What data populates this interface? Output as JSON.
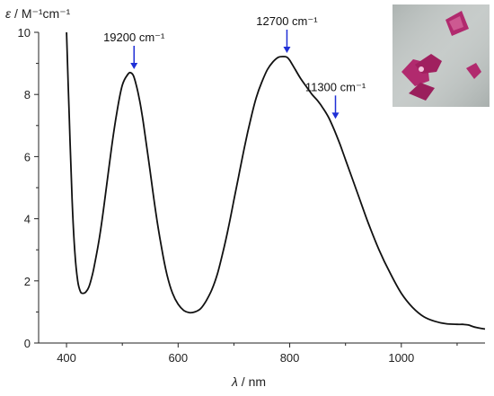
{
  "chart_data": {
    "type": "line",
    "title": "",
    "ylabel_symbol": "ε",
    "ylabel_units": "M⁻¹cm⁻¹",
    "xlabel_symbol": "λ",
    "xlabel_units": "nm",
    "xlim": [
      350,
      1150
    ],
    "ylim": [
      0,
      10
    ],
    "x_ticks": [
      400,
      600,
      800,
      1000
    ],
    "y_ticks": [
      0,
      2,
      4,
      6,
      8,
      10
    ],
    "x_tick_labels": [
      "400",
      "600",
      "800",
      "1000"
    ],
    "y_tick_labels": [
      "0",
      "2",
      "4",
      "6",
      "8",
      "10"
    ],
    "grid": false,
    "line_color": "#111111",
    "annotation_color": "#1f2fd6",
    "series": [
      {
        "x": [
          400,
          405,
          410,
          415,
          420,
          425,
          430,
          435,
          440,
          445,
          450,
          460,
          470,
          480,
          490,
          500,
          510,
          515,
          520,
          525,
          530,
          535,
          540,
          550,
          560,
          570,
          580,
          590,
          600,
          610,
          620,
          630,
          640,
          650,
          660,
          670,
          680,
          690,
          700,
          710,
          720,
          730,
          740,
          750,
          760,
          770,
          780,
          790,
          795,
          800,
          810,
          820,
          830,
          840,
          850,
          860,
          870,
          880,
          890,
          900,
          920,
          940,
          960,
          980,
          1000,
          1020,
          1040,
          1060,
          1080,
          1100,
          1110,
          1120,
          1130,
          1140,
          1150
        ],
        "y": [
          10.0,
          7.2,
          4.6,
          2.9,
          2.0,
          1.65,
          1.6,
          1.65,
          1.8,
          2.1,
          2.5,
          3.5,
          4.8,
          6.2,
          7.4,
          8.3,
          8.65,
          8.7,
          8.6,
          8.3,
          7.9,
          7.4,
          6.8,
          5.5,
          4.2,
          3.1,
          2.2,
          1.6,
          1.25,
          1.05,
          0.98,
          1.0,
          1.1,
          1.35,
          1.7,
          2.2,
          2.9,
          3.7,
          4.6,
          5.5,
          6.4,
          7.2,
          7.9,
          8.4,
          8.8,
          9.05,
          9.2,
          9.22,
          9.2,
          9.1,
          8.8,
          8.5,
          8.25,
          8.0,
          7.8,
          7.55,
          7.25,
          6.85,
          6.4,
          5.9,
          4.9,
          3.9,
          3.0,
          2.25,
          1.6,
          1.15,
          0.85,
          0.7,
          0.62,
          0.6,
          0.6,
          0.58,
          0.52,
          0.48,
          0.45
        ]
      }
    ],
    "annotations": [
      {
        "label": "19200 cm⁻¹",
        "x": 521,
        "y": 8.7
      },
      {
        "label": "12700 cm⁻¹",
        "x": 795,
        "y": 9.22
      },
      {
        "label": "11300 cm⁻¹",
        "x": 882,
        "y": 7.1
      }
    ]
  },
  "inset_photo": {
    "background": "#c3c8c6",
    "crystal_color": "#b12a6e",
    "crystal_highlight": "#e07aa8"
  }
}
